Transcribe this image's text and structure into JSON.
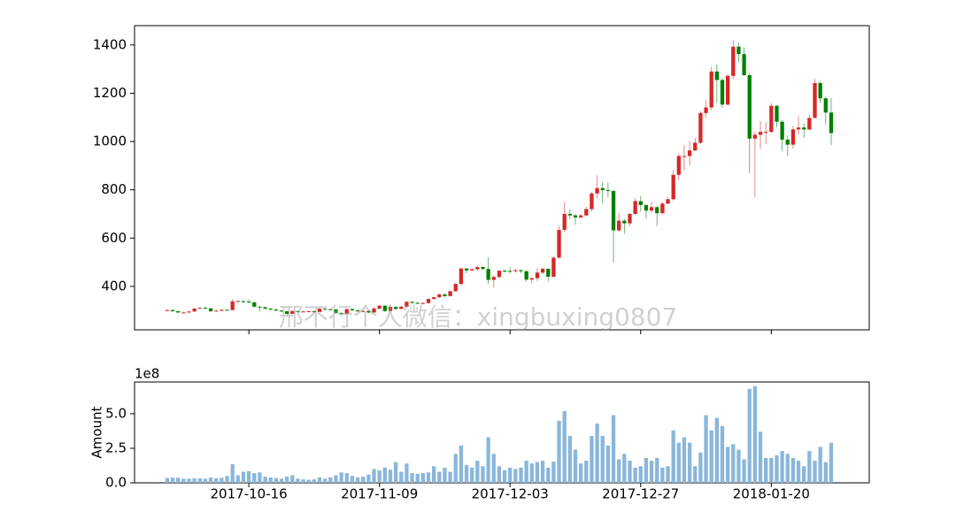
{
  "chart_data": {
    "type": "candlestick",
    "watermark": "邢不行个人微信：xingbuxing0807",
    "x": [
      "2017-10-01",
      "2017-10-02",
      "2017-10-03",
      "2017-10-04",
      "2017-10-05",
      "2017-10-06",
      "2017-10-07",
      "2017-10-08",
      "2017-10-09",
      "2017-10-10",
      "2017-10-11",
      "2017-10-12",
      "2017-10-13",
      "2017-10-14",
      "2017-10-15",
      "2017-10-16",
      "2017-10-17",
      "2017-10-18",
      "2017-10-19",
      "2017-10-20",
      "2017-10-21",
      "2017-10-22",
      "2017-10-23",
      "2017-10-24",
      "2017-10-25",
      "2017-10-26",
      "2017-10-27",
      "2017-10-28",
      "2017-10-29",
      "2017-10-30",
      "2017-10-31",
      "2017-11-01",
      "2017-11-02",
      "2017-11-03",
      "2017-11-04",
      "2017-11-05",
      "2017-11-06",
      "2017-11-07",
      "2017-11-08",
      "2017-11-09",
      "2017-11-10",
      "2017-11-11",
      "2017-11-12",
      "2017-11-13",
      "2017-11-14",
      "2017-11-15",
      "2017-11-16",
      "2017-11-17",
      "2017-11-18",
      "2017-11-19",
      "2017-11-20",
      "2017-11-21",
      "2017-11-22",
      "2017-11-23",
      "2017-11-24",
      "2017-11-25",
      "2017-11-26",
      "2017-11-27",
      "2017-11-28",
      "2017-11-29",
      "2017-11-30",
      "2017-12-01",
      "2017-12-02",
      "2017-12-03",
      "2017-12-04",
      "2017-12-05",
      "2017-12-06",
      "2017-12-07",
      "2017-12-08",
      "2017-12-09",
      "2017-12-10",
      "2017-12-11",
      "2017-12-12",
      "2017-12-13",
      "2017-12-14",
      "2017-12-15",
      "2017-12-16",
      "2017-12-17",
      "2017-12-18",
      "2017-12-19",
      "2017-12-20",
      "2017-12-21",
      "2017-12-22",
      "2017-12-23",
      "2017-12-24",
      "2017-12-25",
      "2017-12-26",
      "2017-12-27",
      "2017-12-28",
      "2017-12-29",
      "2017-12-30",
      "2017-12-31",
      "2018-01-01",
      "2018-01-02",
      "2018-01-03",
      "2018-01-04",
      "2018-01-05",
      "2018-01-06",
      "2018-01-07",
      "2018-01-08",
      "2018-01-09",
      "2018-01-10",
      "2018-01-11",
      "2018-01-12",
      "2018-01-13",
      "2018-01-14",
      "2018-01-15",
      "2018-01-16",
      "2018-01-17",
      "2018-01-18",
      "2018-01-19",
      "2018-01-20",
      "2018-01-21",
      "2018-01-22",
      "2018-01-23",
      "2018-01-24",
      "2018-01-25",
      "2018-01-26",
      "2018-01-27",
      "2018-01-28",
      "2018-01-29",
      "2018-01-30",
      "2018-01-31"
    ],
    "open": [
      300,
      302,
      297,
      292,
      292,
      296,
      308,
      311,
      309,
      297,
      299,
      303,
      302,
      338,
      339,
      337,
      334,
      316,
      314,
      308,
      304,
      300,
      297,
      286,
      298,
      296,
      296,
      297,
      294,
      307,
      306,
      305,
      290,
      287,
      306,
      301,
      297,
      298,
      292,
      308,
      320,
      298,
      315,
      307,
      316,
      336,
      332,
      331,
      331,
      348,
      355,
      367,
      360,
      380,
      410,
      474,
      466,
      471,
      480,
      472,
      427,
      439,
      465,
      464,
      463,
      467,
      463,
      428,
      434,
      457,
      473,
      440,
      519,
      634,
      700,
      694,
      686,
      694,
      720,
      785,
      807,
      799,
      795,
      632,
      672,
      661,
      700,
      753,
      737,
      714,
      728,
      703,
      743,
      761,
      862,
      940,
      940,
      963,
      995,
      1118,
      1141,
      1290,
      1255,
      1153,
      1272,
      1393,
      1362,
      1275,
      1012,
      1028,
      1040,
      1040,
      1148,
      1082,
      1008,
      987,
      1050,
      1058,
      1050,
      1098,
      1242,
      1179,
      1120
    ],
    "high": [
      304,
      304,
      299,
      295,
      298,
      310,
      313,
      316,
      310,
      304,
      306,
      305,
      347,
      342,
      341,
      346,
      336,
      318,
      315,
      309,
      308,
      302,
      298,
      300,
      299,
      299,
      299,
      300,
      310,
      310,
      308,
      306,
      293,
      309,
      310,
      303,
      302,
      300,
      314,
      323,
      322,
      318,
      317,
      318,
      340,
      338,
      335,
      334,
      350,
      358,
      370,
      371,
      382,
      415,
      478,
      475,
      475,
      487,
      484,
      520,
      445,
      468,
      469,
      478,
      472,
      470,
      464,
      437,
      476,
      476,
      474,
      525,
      650,
      750,
      720,
      700,
      700,
      730,
      790,
      860,
      834,
      830,
      800,
      705,
      680,
      705,
      765,
      775,
      740,
      750,
      735,
      750,
      771,
      883,
      950,
      985,
      1000,
      1015,
      1125,
      1170,
      1310,
      1320,
      1260,
      1280,
      1420,
      1410,
      1390,
      1285,
      1040,
      1085,
      1080,
      1160,
      1150,
      1090,
      1025,
      1065,
      1105,
      1075,
      1110,
      1260,
      1250,
      1185,
      1180
    ],
    "low": [
      297,
      296,
      290,
      289,
      290,
      294,
      306,
      307,
      294,
      295,
      297,
      300,
      301,
      333,
      330,
      331,
      312,
      298,
      304,
      300,
      296,
      294,
      282,
      284,
      292,
      293,
      294,
      291,
      292,
      303,
      299,
      286,
      278,
      285,
      298,
      294,
      294,
      288,
      290,
      305,
      294,
      296,
      301,
      305,
      314,
      328,
      325,
      326,
      329,
      345,
      352,
      355,
      358,
      378,
      405,
      455,
      462,
      466,
      468,
      410,
      395,
      433,
      458,
      455,
      457,
      455,
      420,
      412,
      422,
      450,
      420,
      438,
      515,
      625,
      680,
      655,
      682,
      690,
      710,
      765,
      745,
      770,
      500,
      625,
      618,
      650,
      695,
      710,
      680,
      705,
      650,
      700,
      740,
      756,
      840,
      880,
      900,
      960,
      990,
      1100,
      1130,
      1160,
      1140,
      1150,
      1260,
      1330,
      1270,
      870,
      770,
      970,
      990,
      1035,
      1060,
      960,
      940,
      970,
      1030,
      1015,
      1045,
      1095,
      1160,
      1070,
      985
    ],
    "close": [
      302,
      297,
      292,
      292,
      296,
      308,
      311,
      309,
      297,
      299,
      303,
      302,
      338,
      339,
      337,
      334,
      316,
      314,
      308,
      304,
      300,
      297,
      286,
      298,
      296,
      296,
      297,
      294,
      307,
      306,
      305,
      290,
      287,
      306,
      301,
      297,
      298,
      292,
      308,
      320,
      298,
      315,
      307,
      316,
      336,
      332,
      331,
      331,
      348,
      355,
      367,
      360,
      380,
      410,
      474,
      466,
      471,
      480,
      472,
      427,
      439,
      465,
      464,
      463,
      467,
      463,
      428,
      434,
      457,
      473,
      440,
      519,
      634,
      700,
      694,
      686,
      694,
      720,
      785,
      807,
      799,
      795,
      632,
      672,
      661,
      700,
      753,
      737,
      714,
      728,
      703,
      743,
      761,
      862,
      940,
      940,
      963,
      995,
      1118,
      1141,
      1290,
      1255,
      1153,
      1272,
      1393,
      1362,
      1275,
      1012,
      1028,
      1040,
      1040,
      1148,
      1082,
      1008,
      987,
      1050,
      1058,
      1050,
      1098,
      1242,
      1179,
      1120,
      1035
    ],
    "up_color": "#d62728",
    "down_color": "#008000",
    "xlim": [
      "2017-09-25",
      "2018-02-07"
    ],
    "xticks": [
      "2017-10-16",
      "2017-11-09",
      "2017-12-03",
      "2017-12-27",
      "2018-01-20"
    ],
    "ylim": [
      220,
      1480
    ],
    "yticks": [
      400,
      600,
      800,
      1000,
      1200,
      1400
    ],
    "volume": {
      "ylabel": "Amount",
      "offset_label": "1e8",
      "color": "#8ab6da",
      "ylim": [
        0,
        7.3
      ],
      "yticks": [
        {
          "value": 0,
          "label": "0.0"
        },
        2.5,
        {
          "value": 5,
          "label": "5.0"
        }
      ],
      "values": [
        0.35,
        0.38,
        0.37,
        0.3,
        0.3,
        0.33,
        0.32,
        0.3,
        0.38,
        0.33,
        0.36,
        0.5,
        1.35,
        0.55,
        0.8,
        0.85,
        0.7,
        0.75,
        0.45,
        0.38,
        0.35,
        0.3,
        0.45,
        0.55,
        0.3,
        0.25,
        0.22,
        0.25,
        0.4,
        0.3,
        0.4,
        0.55,
        0.75,
        0.7,
        0.5,
        0.4,
        0.45,
        0.6,
        1.0,
        0.9,
        1.1,
        0.95,
        1.5,
        0.8,
        1.4,
        0.7,
        0.65,
        0.7,
        0.75,
        1.2,
        0.8,
        1.1,
        0.8,
        2.1,
        2.7,
        1.3,
        1.1,
        1.6,
        1.2,
        3.3,
        2.1,
        1.2,
        0.9,
        1.1,
        1.0,
        1.1,
        1.6,
        1.4,
        1.5,
        1.6,
        1.1,
        1.55,
        4.5,
        5.2,
        3.4,
        2.4,
        1.4,
        1.6,
        3.4,
        4.3,
        3.4,
        2.7,
        4.9,
        1.7,
        2.1,
        1.6,
        1.1,
        1.2,
        1.8,
        1.6,
        1.8,
        1.1,
        1.2,
        3.8,
        2.9,
        3.3,
        2.9,
        1.2,
        2.2,
        4.9,
        3.8,
        4.7,
        4.1,
        2.6,
        2.8,
        2.4,
        1.7,
        6.8,
        7.0,
        3.7,
        1.8,
        1.8,
        2.0,
        2.3,
        2.1,
        1.8,
        1.6,
        1.2,
        2.3,
        1.6,
        2.6,
        1.5,
        2.9
      ]
    }
  }
}
